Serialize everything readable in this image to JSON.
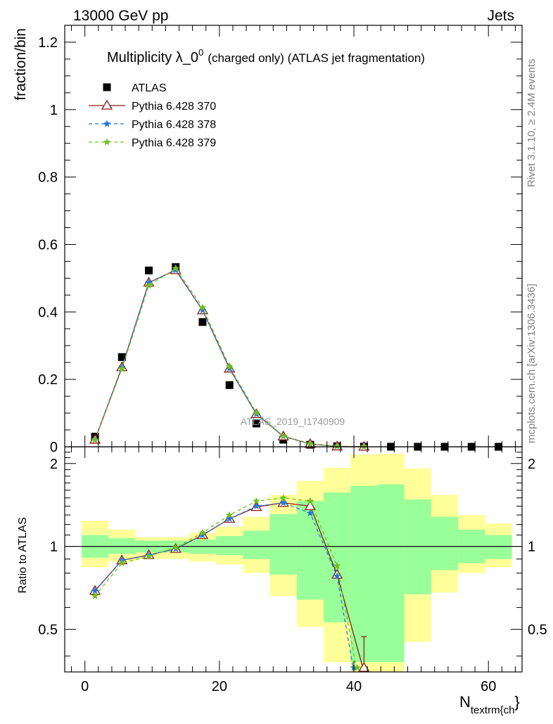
{
  "header": {
    "left": "13000 GeV pp",
    "right": "Jets"
  },
  "side_labels": {
    "rivet": "Rivet 3.1.10, ≥ 2.4M events",
    "mcplots": "mcplots.cern.ch [arXiv:1306.3436]"
  },
  "colors": {
    "data": "#000000",
    "py370": "#8b1a1a",
    "py378": "#1e78dc",
    "py379": "#6dc21e",
    "band_inner": "#99ff99",
    "band_outer": "#ffff99"
  },
  "chart_data": [
    {
      "type": "line",
      "title_main": "Multiplicity λ_0",
      "title_sup": "0",
      "title_rest": "(charged only) (ATLAS jet fragmentation)",
      "ylabel": "fraction/bin",
      "watermark": "ATLAS_2019_I1740909",
      "xlim": [
        -3,
        65
      ],
      "ylim": [
        0,
        1.25
      ],
      "yticks": [
        0,
        0.2,
        0.4,
        0.6,
        0.8,
        1,
        1.2
      ],
      "ytick_labels": [
        "0",
        "0.2",
        "0.4",
        "0.6",
        "0.8",
        "1",
        "1.2"
      ],
      "legend_position": "top-left",
      "series": [
        {
          "name": "ATLAS",
          "key": "data",
          "marker": "square",
          "x": [
            1.5,
            5.5,
            9.5,
            13.5,
            17.5,
            21.5,
            25.5,
            29.5,
            33.5,
            37.5,
            41.5,
            45.5,
            49.5,
            53.5,
            57.5,
            61.5
          ],
          "y": [
            0.03,
            0.266,
            0.523,
            0.533,
            0.37,
            0.183,
            0.069,
            0.021,
            0.006,
            0.0015,
            0.0005,
            0.0002,
            0.0001,
            5e-05,
            2e-05,
            1e-05
          ]
        },
        {
          "name": "Pythia 6.428 370",
          "key": "py370",
          "marker": "triangle",
          "dash": "",
          "x": [
            1.5,
            5.5,
            9.5,
            13.5,
            17.5,
            21.5,
            25.5,
            29.5,
            33.5,
            37.5,
            41.5
          ],
          "y": [
            0.021,
            0.236,
            0.487,
            0.524,
            0.405,
            0.232,
            0.097,
            0.031,
            0.0085,
            0.0012,
            0.0002
          ]
        },
        {
          "name": "Pythia 6.428 378",
          "key": "py378",
          "marker": "star",
          "dash": "5,4",
          "x": [
            1.5,
            5.5,
            9.5,
            13.5,
            17.5,
            21.5,
            25.5,
            29.5,
            33.5,
            37.5,
            41.5
          ],
          "y": [
            0.021,
            0.236,
            0.487,
            0.524,
            0.405,
            0.232,
            0.097,
            0.031,
            0.0083,
            0.0012,
            0.0001
          ]
        },
        {
          "name": "Pythia 6.428 379",
          "key": "py379",
          "marker": "star",
          "dash": "5,4",
          "x": [
            1.5,
            5.5,
            9.5,
            13.5,
            17.5,
            21.5,
            25.5,
            29.5,
            33.5,
            37.5,
            41.5
          ],
          "y": [
            0.02,
            0.231,
            0.478,
            0.529,
            0.413,
            0.238,
            0.101,
            0.032,
            0.0088,
            0.0013,
            0.0001
          ]
        }
      ]
    },
    {
      "type": "line",
      "ylabel": "Ratio to ATLAS",
      "xlabel_main": "N",
      "xlabel_sub": "textrm{ch",
      "xlabel_close": "}",
      "xlim": [
        -3,
        65
      ],
      "ylim": [
        0.35,
        2.3
      ],
      "ylog": true,
      "xticks": [
        0,
        20,
        40,
        60
      ],
      "xtick_labels": [
        "0",
        "20",
        "40",
        "60"
      ],
      "yticks": [
        0.5,
        1,
        2
      ],
      "ytick_labels": [
        "0.5",
        "1",
        "2"
      ],
      "reference_line": 1,
      "bands": {
        "edges": [
          [
            -0.5,
            3.5
          ],
          [
            3.5,
            7.5
          ],
          [
            7.5,
            11.5
          ],
          [
            11.5,
            15.5
          ],
          [
            15.5,
            19.5
          ],
          [
            19.5,
            23.5
          ],
          [
            23.5,
            27.5
          ],
          [
            27.5,
            31.5
          ],
          [
            31.5,
            35.5
          ],
          [
            35.5,
            39.5
          ],
          [
            39.5,
            43.5
          ],
          [
            43.5,
            47.5
          ],
          [
            47.5,
            51.5
          ],
          [
            51.5,
            55.5
          ],
          [
            55.5,
            59.5
          ],
          [
            59.5,
            63.5
          ]
        ],
        "inner_low": [
          0.91,
          0.94,
          0.95,
          0.95,
          0.94,
          0.93,
          0.9,
          0.79,
          0.64,
          0.53,
          0.38,
          0.38,
          0.67,
          0.82,
          0.87,
          0.9
        ],
        "inner_high": [
          1.1,
          1.07,
          1.05,
          1.05,
          1.06,
          1.09,
          1.14,
          1.31,
          1.46,
          1.57,
          1.66,
          1.68,
          1.48,
          1.28,
          1.15,
          1.1
        ],
        "outer_low": [
          0.84,
          0.88,
          0.9,
          0.9,
          0.88,
          0.86,
          0.8,
          0.66,
          0.51,
          0.38,
          0.35,
          0.35,
          0.45,
          0.68,
          0.8,
          0.84
        ],
        "outer_high": [
          1.24,
          1.15,
          1.08,
          1.08,
          1.12,
          1.18,
          1.28,
          1.54,
          1.73,
          1.93,
          2.16,
          2.17,
          1.92,
          1.54,
          1.3,
          1.21
        ]
      },
      "series": [
        {
          "name": "Pythia 6.428 370",
          "key": "py370",
          "marker": "triangle",
          "dash": "",
          "x": [
            1.5,
            5.5,
            9.5,
            13.5,
            17.5,
            21.5,
            25.5,
            29.5,
            33.5,
            37.5,
            41.5
          ],
          "y": [
            0.69,
            0.89,
            0.93,
            0.98,
            1.1,
            1.26,
            1.39,
            1.44,
            1.4,
            0.79,
            0.35
          ],
          "err_x": [
            33.5,
            41.5
          ],
          "err_lo": [
            1.35,
            0.35
          ],
          "err_hi": [
            1.46,
            0.47
          ]
        },
        {
          "name": "Pythia 6.428 378",
          "key": "py378",
          "marker": "star",
          "dash": "5,4",
          "x": [
            1.5,
            5.5,
            9.5,
            13.5,
            17.5,
            21.5,
            25.5,
            29.5,
            33.5,
            37.5,
            40.0
          ],
          "y": [
            0.69,
            0.89,
            0.93,
            0.98,
            1.1,
            1.26,
            1.4,
            1.44,
            1.32,
            0.78,
            0.35
          ]
        },
        {
          "name": "Pythia 6.428 379",
          "key": "py379",
          "marker": "star",
          "dash": "5,4",
          "x": [
            1.5,
            5.5,
            9.5,
            13.5,
            17.5,
            21.5,
            25.5,
            29.5,
            33.5,
            37.5,
            40.5
          ],
          "y": [
            0.66,
            0.87,
            0.92,
            0.99,
            1.12,
            1.3,
            1.46,
            1.5,
            1.46,
            0.85,
            0.35
          ]
        }
      ]
    }
  ]
}
